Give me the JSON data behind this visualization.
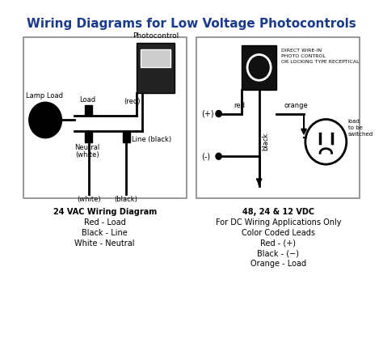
{
  "title": "Wiring Diagrams for Low Voltage Photocontrols",
  "title_fontsize": 11,
  "title_color": "#1a3a8c",
  "bg_color": "#ffffff",
  "left_caption": [
    "24 VAC Wiring Diagram",
    "Red - Load",
    "Black - Line",
    "White - Neutral"
  ],
  "right_caption": [
    "48, 24 & 12 VDC",
    "For DC Wiring Applications Only",
    "Color Coded Leads",
    "Red - (+)",
    "Black - (−)",
    "Orange - Load"
  ]
}
